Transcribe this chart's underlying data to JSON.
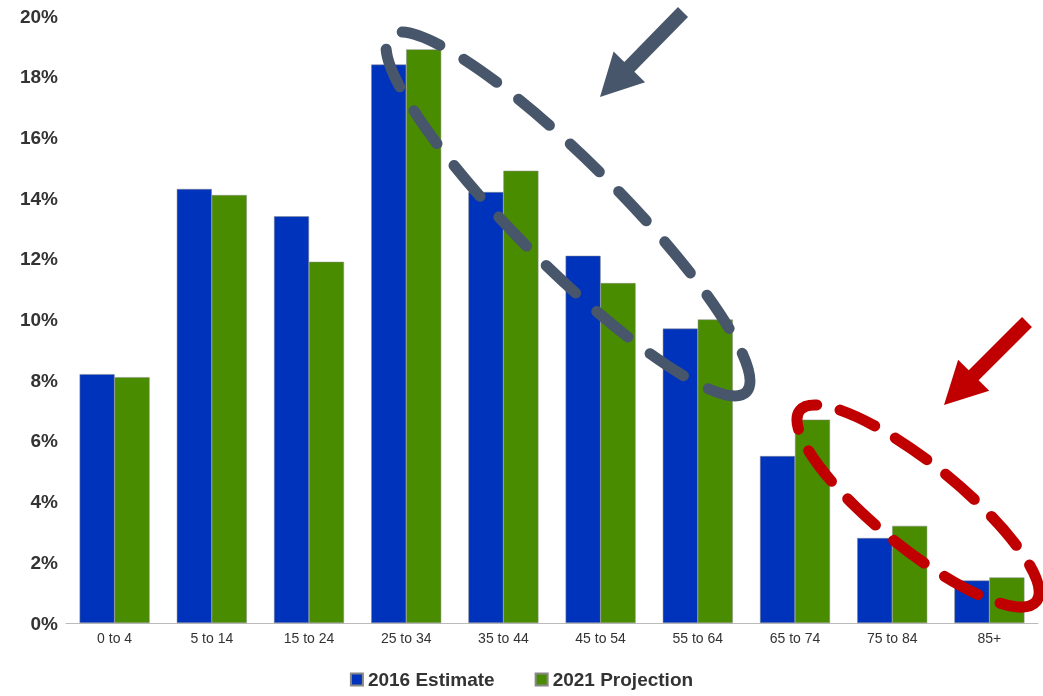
{
  "chart_data": {
    "type": "bar",
    "categories": [
      "0 to 4",
      "5 to 14",
      "15 to 24",
      "25 to 34",
      "35 to 44",
      "45 to 54",
      "55 to 64",
      "65 to 74",
      "75 to 84",
      "85+"
    ],
    "series": [
      {
        "name": "2016 Estimate",
        "color": "#0033bb",
        "values": [
          8.2,
          14.3,
          13.4,
          18.4,
          14.2,
          12.1,
          9.7,
          5.5,
          2.8,
          1.4
        ]
      },
      {
        "name": "2021 Projection",
        "color": "#4a8c00",
        "values": [
          8.1,
          14.1,
          11.9,
          18.9,
          14.9,
          11.2,
          10.0,
          6.7,
          3.2,
          1.5
        ]
      }
    ],
    "ylim": [
      0,
      20
    ],
    "yticks": [
      {
        "value": 0,
        "label": "0%"
      },
      {
        "value": 2,
        "label": "2%"
      },
      {
        "value": 4,
        "label": "4%"
      },
      {
        "value": 6,
        "label": "6%"
      },
      {
        "value": 8,
        "label": "8%"
      },
      {
        "value": 10,
        "label": "10%"
      },
      {
        "value": 12,
        "label": "12%"
      },
      {
        "value": 14,
        "label": "14%"
      },
      {
        "value": 16,
        "label": "16%"
      },
      {
        "value": 18,
        "label": "18%"
      },
      {
        "value": 20,
        "label": "20%"
      }
    ],
    "grid": false,
    "legend": "bottom"
  }
}
